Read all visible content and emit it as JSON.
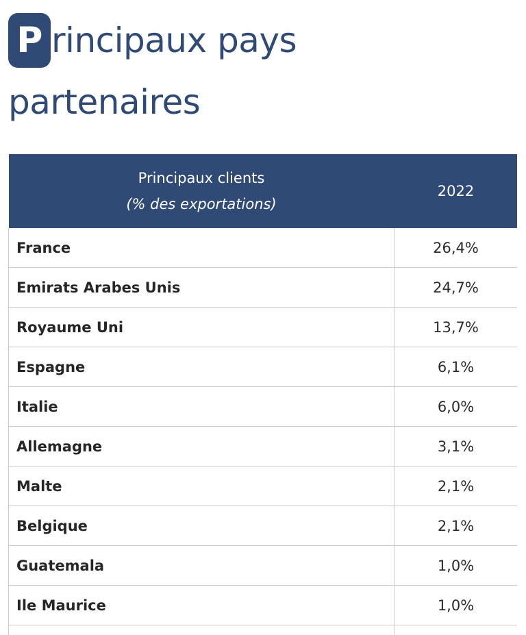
{
  "title": {
    "initial": "P",
    "line1_rest": "rincipaux pays",
    "line2": "partenaires"
  },
  "table": {
    "header": {
      "label": "Principaux clients",
      "sublabel": "(% des exportations)",
      "year": "2022"
    },
    "rows": [
      {
        "country": "France",
        "value": "26,4%"
      },
      {
        "country": "Emirats Arabes Unis",
        "value": "24,7%"
      },
      {
        "country": "Royaume Uni",
        "value": "13,7%"
      },
      {
        "country": "Espagne",
        "value": "6,1%"
      },
      {
        "country": "Italie",
        "value": "6,0%"
      },
      {
        "country": "Allemagne",
        "value": "3,1%"
      },
      {
        "country": "Malte",
        "value": "2,1%"
      },
      {
        "country": "Belgique",
        "value": "2,1%"
      },
      {
        "country": "Guatemala",
        "value": "1,0%"
      },
      {
        "country": "Ile Maurice",
        "value": "1,0%"
      }
    ]
  },
  "colors": {
    "brand_navy": "#2f4a74",
    "border_gray": "#c9c9c9"
  }
}
